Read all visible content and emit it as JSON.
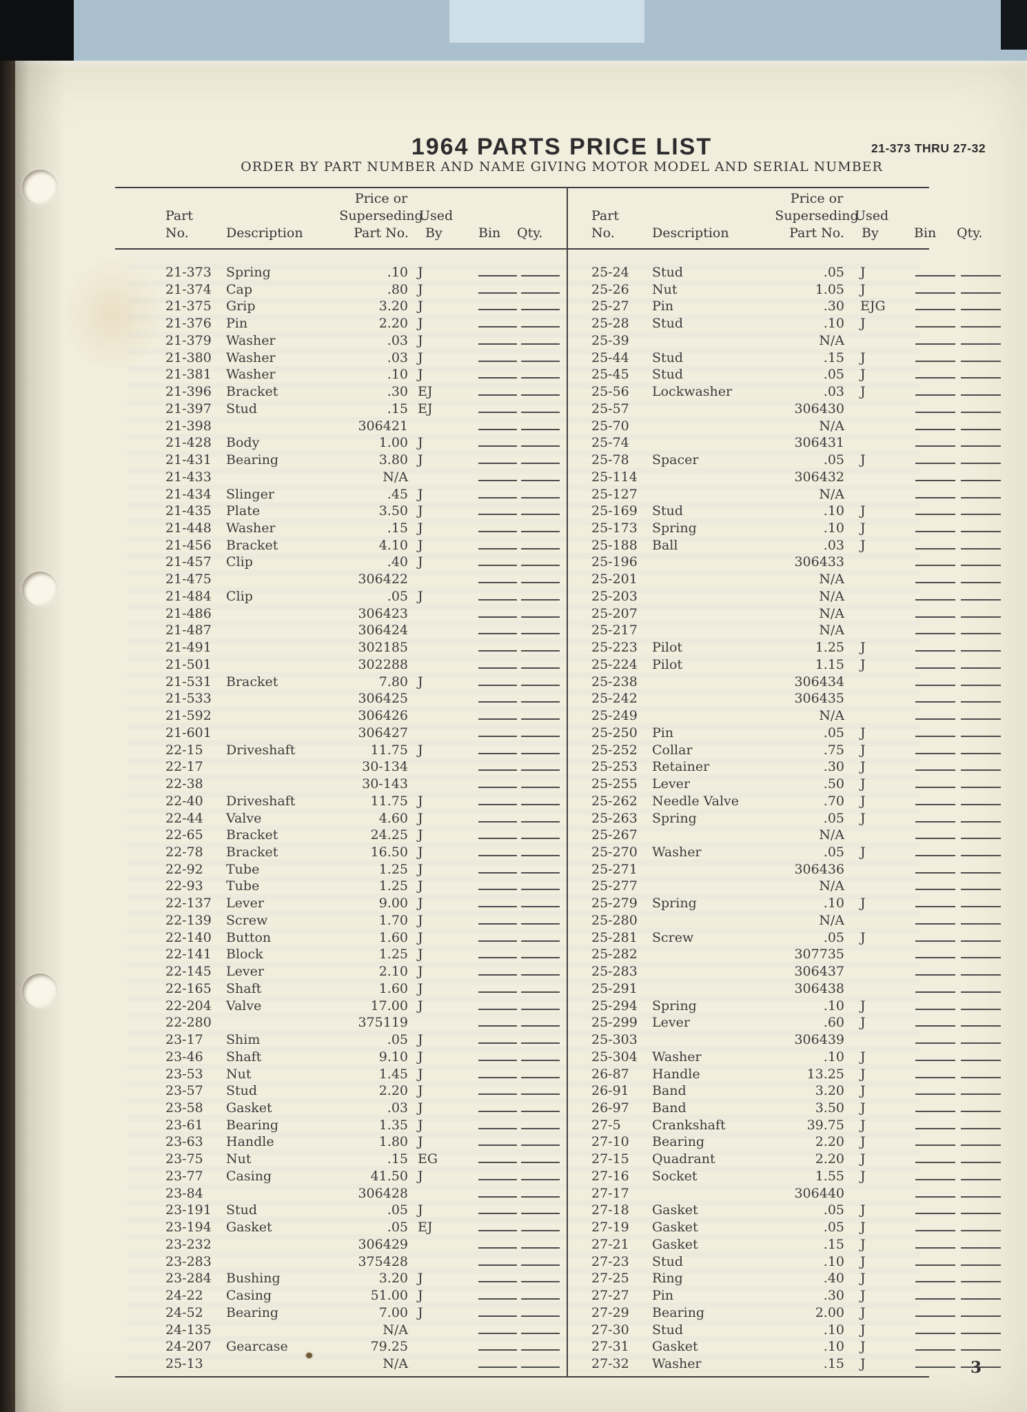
{
  "page": {
    "title": "1964 PARTS PRICE LIST",
    "subtitle": "ORDER BY PART NUMBER AND NAME GIVING MOTOR MODEL AND SERIAL NUMBER",
    "range_label": "21-373 THRU 27-32",
    "page_number": "3"
  },
  "colors": {
    "paper": "#f2eedd",
    "ink": "#3a3a3c",
    "rule": "#3f3f42",
    "scanner_band": "#aac0cf"
  },
  "table": {
    "headers": {
      "part": [
        "Part",
        "No."
      ],
      "description": "Description",
      "price": [
        "Price or",
        "Superseding",
        "Part No."
      ],
      "used": [
        "Used",
        "By"
      ],
      "bin": "Bin",
      "qty": "Qty."
    },
    "left_rows": [
      [
        "21-373",
        "Spring",
        ".10",
        "J"
      ],
      [
        "21-374",
        "Cap",
        ".80",
        "J"
      ],
      [
        "21-375",
        "Grip",
        "3.20",
        "J"
      ],
      [
        "21-376",
        "Pin",
        "2.20",
        "J"
      ],
      [
        "21-379",
        "Washer",
        ".03",
        "J"
      ],
      [
        "21-380",
        "Washer",
        ".03",
        "J"
      ],
      [
        "21-381",
        "Washer",
        ".10",
        "J"
      ],
      [
        "21-396",
        "Bracket",
        ".30",
        "EJ"
      ],
      [
        "21-397",
        "Stud",
        ".15",
        "EJ"
      ],
      [
        "21-398",
        "",
        "306421",
        ""
      ],
      [
        "21-428",
        "Body",
        "1.00",
        "J"
      ],
      [
        "21-431",
        "Bearing",
        "3.80",
        "J"
      ],
      [
        "21-433",
        "",
        "N/A",
        ""
      ],
      [
        "21-434",
        "Slinger",
        ".45",
        "J"
      ],
      [
        "21-435",
        "Plate",
        "3.50",
        "J"
      ],
      [
        "21-448",
        "Washer",
        ".15",
        "J"
      ],
      [
        "21-456",
        "Bracket",
        "4.10",
        "J"
      ],
      [
        "21-457",
        "Clip",
        ".40",
        "J"
      ],
      [
        "21-475",
        "",
        "306422",
        ""
      ],
      [
        "21-484",
        "Clip",
        ".05",
        "J"
      ],
      [
        "21-486",
        "",
        "306423",
        ""
      ],
      [
        "21-487",
        "",
        "306424",
        ""
      ],
      [
        "21-491",
        "",
        "302185",
        ""
      ],
      [
        "21-501",
        "",
        "302288",
        ""
      ],
      [
        "21-531",
        "Bracket",
        "7.80",
        "J"
      ],
      [
        "21-533",
        "",
        "306425",
        ""
      ],
      [
        "21-592",
        "",
        "306426",
        ""
      ],
      [
        "21-601",
        "",
        "306427",
        ""
      ],
      [
        "22-15",
        "Driveshaft",
        "11.75",
        "J"
      ],
      [
        "22-17",
        "",
        "30-134",
        ""
      ],
      [
        "22-38",
        "",
        "30-143",
        ""
      ],
      [
        "22-40",
        "Driveshaft",
        "11.75",
        "J"
      ],
      [
        "22-44",
        "Valve",
        "4.60",
        "J"
      ],
      [
        "22-65",
        "Bracket",
        "24.25",
        "J"
      ],
      [
        "22-78",
        "Bracket",
        "16.50",
        "J"
      ],
      [
        "22-92",
        "Tube",
        "1.25",
        "J"
      ],
      [
        "22-93",
        "Tube",
        "1.25",
        "J"
      ],
      [
        "22-137",
        "Lever",
        "9.00",
        "J"
      ],
      [
        "22-139",
        "Screw",
        "1.70",
        "J"
      ],
      [
        "22-140",
        "Button",
        "1.60",
        "J"
      ],
      [
        "22-141",
        "Block",
        "1.25",
        "J"
      ],
      [
        "22-145",
        "Lever",
        "2.10",
        "J"
      ],
      [
        "22-165",
        "Shaft",
        "1.60",
        "J"
      ],
      [
        "22-204",
        "Valve",
        "17.00",
        "J"
      ],
      [
        "22-280",
        "",
        "375119",
        ""
      ],
      [
        "23-17",
        "Shim",
        ".05",
        "J"
      ],
      [
        "23-46",
        "Shaft",
        "9.10",
        "J"
      ],
      [
        "23-53",
        "Nut",
        "1.45",
        "J"
      ],
      [
        "23-57",
        "Stud",
        "2.20",
        "J"
      ],
      [
        "23-58",
        "Gasket",
        ".03",
        "J"
      ],
      [
        "23-61",
        "Bearing",
        "1.35",
        "J"
      ],
      [
        "23-63",
        "Handle",
        "1.80",
        "J"
      ],
      [
        "23-75",
        "Nut",
        ".15",
        "EG"
      ],
      [
        "23-77",
        "Casing",
        "41.50",
        "J"
      ],
      [
        "23-84",
        "",
        "306428",
        ""
      ],
      [
        "23-191",
        "Stud",
        ".05",
        "J"
      ],
      [
        "23-194",
        "Gasket",
        ".05",
        "EJ"
      ],
      [
        "23-232",
        "",
        "306429",
        ""
      ],
      [
        "23-283",
        "",
        "375428",
        ""
      ],
      [
        "23-284",
        "Bushing",
        "3.20",
        "J"
      ],
      [
        "24-22",
        "Casing",
        "51.00",
        "J"
      ],
      [
        "24-52",
        "Bearing",
        "7.00",
        "J"
      ],
      [
        "24-135",
        "",
        "N/A",
        ""
      ],
      [
        "24-207",
        "Gearcase",
        "79.25",
        ""
      ],
      [
        "25-13",
        "",
        "N/A",
        ""
      ]
    ],
    "right_rows": [
      [
        "25-24",
        "Stud",
        ".05",
        "J"
      ],
      [
        "25-26",
        "Nut",
        "1.05",
        "J"
      ],
      [
        "25-27",
        "Pin",
        ".30",
        "EJG"
      ],
      [
        "25-28",
        "Stud",
        ".10",
        "J"
      ],
      [
        "25-39",
        "",
        "N/A",
        ""
      ],
      [
        "25-44",
        "Stud",
        ".15",
        "J"
      ],
      [
        "25-45",
        "Stud",
        ".05",
        "J"
      ],
      [
        "25-56",
        "Lockwasher",
        ".03",
        "J"
      ],
      [
        "25-57",
        "",
        "306430",
        ""
      ],
      [
        "25-70",
        "",
        "N/A",
        ""
      ],
      [
        "25-74",
        "",
        "306431",
        ""
      ],
      [
        "25-78",
        "Spacer",
        ".05",
        "J"
      ],
      [
        "25-114",
        "",
        "306432",
        ""
      ],
      [
        "25-127",
        "",
        "N/A",
        ""
      ],
      [
        "25-169",
        "Stud",
        ".10",
        "J"
      ],
      [
        "25-173",
        "Spring",
        ".10",
        "J"
      ],
      [
        "25-188",
        "Ball",
        ".03",
        "J"
      ],
      [
        "25-196",
        "",
        "306433",
        ""
      ],
      [
        "25-201",
        "",
        "N/A",
        ""
      ],
      [
        "25-203",
        "",
        "N/A",
        ""
      ],
      [
        "25-207",
        "",
        "N/A",
        ""
      ],
      [
        "25-217",
        "",
        "N/A",
        ""
      ],
      [
        "25-223",
        "Pilot",
        "1.25",
        "J"
      ],
      [
        "25-224",
        "Pilot",
        "1.15",
        "J"
      ],
      [
        "25-238",
        "",
        "306434",
        ""
      ],
      [
        "25-242",
        "",
        "306435",
        ""
      ],
      [
        "25-249",
        "",
        "N/A",
        ""
      ],
      [
        "25-250",
        "Pin",
        ".05",
        "J"
      ],
      [
        "25-252",
        "Collar",
        ".75",
        "J"
      ],
      [
        "25-253",
        "Retainer",
        ".30",
        "J"
      ],
      [
        "25-255",
        "Lever",
        ".50",
        "J"
      ],
      [
        "25-262",
        "Needle Valve",
        ".70",
        "J"
      ],
      [
        "25-263",
        "Spring",
        ".05",
        "J"
      ],
      [
        "25-267",
        "",
        "N/A",
        ""
      ],
      [
        "25-270",
        "Washer",
        ".05",
        "J"
      ],
      [
        "25-271",
        "",
        "306436",
        ""
      ],
      [
        "25-277",
        "",
        "N/A",
        ""
      ],
      [
        "25-279",
        "Spring",
        ".10",
        "J"
      ],
      [
        "25-280",
        "",
        "N/A",
        ""
      ],
      [
        "25-281",
        "Screw",
        ".05",
        "J"
      ],
      [
        "25-282",
        "",
        "307735",
        ""
      ],
      [
        "25-283",
        "",
        "306437",
        ""
      ],
      [
        "25-291",
        "",
        "306438",
        ""
      ],
      [
        "25-294",
        "Spring",
        ".10",
        "J"
      ],
      [
        "25-299",
        "Lever",
        ".60",
        "J"
      ],
      [
        "25-303",
        "",
        "306439",
        ""
      ],
      [
        "25-304",
        "Washer",
        ".10",
        "J"
      ],
      [
        "26-87",
        "Handle",
        "13.25",
        "J"
      ],
      [
        "26-91",
        "Band",
        "3.20",
        "J"
      ],
      [
        "26-97",
        "Band",
        "3.50",
        "J"
      ],
      [
        "27-5",
        "Crankshaft",
        "39.75",
        "J"
      ],
      [
        "27-10",
        "Bearing",
        "2.20",
        "J"
      ],
      [
        "27-15",
        "Quadrant",
        "2.20",
        "J"
      ],
      [
        "27-16",
        "Socket",
        "1.55",
        "J"
      ],
      [
        "27-17",
        "",
        "306440",
        ""
      ],
      [
        "27-18",
        "Gasket",
        ".05",
        "J"
      ],
      [
        "27-19",
        "Gasket",
        ".05",
        "J"
      ],
      [
        "27-21",
        "Gasket",
        ".15",
        "J"
      ],
      [
        "27-23",
        "Stud",
        ".10",
        "J"
      ],
      [
        "27-25",
        "Ring",
        ".40",
        "J"
      ],
      [
        "27-27",
        "Pin",
        ".30",
        "J"
      ],
      [
        "27-29",
        "Bearing",
        "2.00",
        "J"
      ],
      [
        "27-30",
        "Stud",
        ".10",
        "J"
      ],
      [
        "27-31",
        "Gasket",
        ".10",
        "J"
      ],
      [
        "27-32",
        "Washer",
        ".15",
        "J"
      ]
    ]
  }
}
